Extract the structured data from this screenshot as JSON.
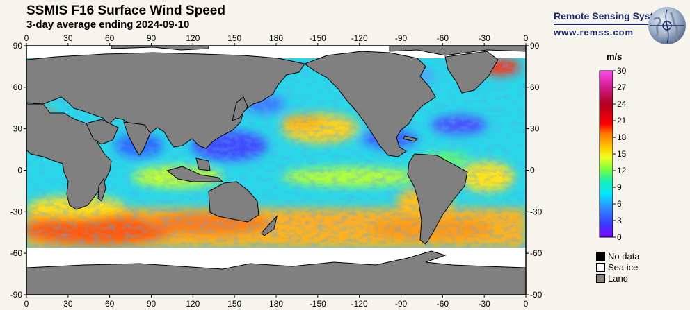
{
  "header": {
    "title": "SSMIS F16 Surface Wind Speed",
    "subtitle": "3-day average ending 2024-09-10"
  },
  "brand": {
    "name": "Remote Sensing Systems",
    "url": "www.remss.com"
  },
  "map": {
    "top_lon_labels": [
      "0",
      "30",
      "60",
      "90",
      "120",
      "150",
      "180",
      "-150",
      "-120",
      "-90",
      "-60",
      "-30",
      "0"
    ],
    "bottom_lon_labels": [
      "0",
      "30",
      "60",
      "90",
      "120",
      "150",
      "180",
      "-150",
      "-120",
      "-90",
      "-60",
      "-30",
      "0"
    ],
    "left_lat_labels": [
      "90",
      "60",
      "30",
      "0",
      "-30",
      "-60",
      "-90"
    ],
    "right_lat_labels": [
      "90",
      "60",
      "30",
      "0",
      "-30",
      "-60",
      "-90"
    ],
    "colors": {
      "land": "#808080",
      "sea_ice": "#ffffff",
      "no_data": "#000000"
    }
  },
  "colorbar": {
    "unit": "m/s",
    "ticks": [
      "30",
      "27",
      "24",
      "21",
      "18",
      "15",
      "12",
      "9",
      "6",
      "3",
      "0"
    ],
    "min": 0,
    "max": 30
  },
  "legend": {
    "no_data": "No data",
    "sea_ice": "Sea ice",
    "land": "Land"
  }
}
